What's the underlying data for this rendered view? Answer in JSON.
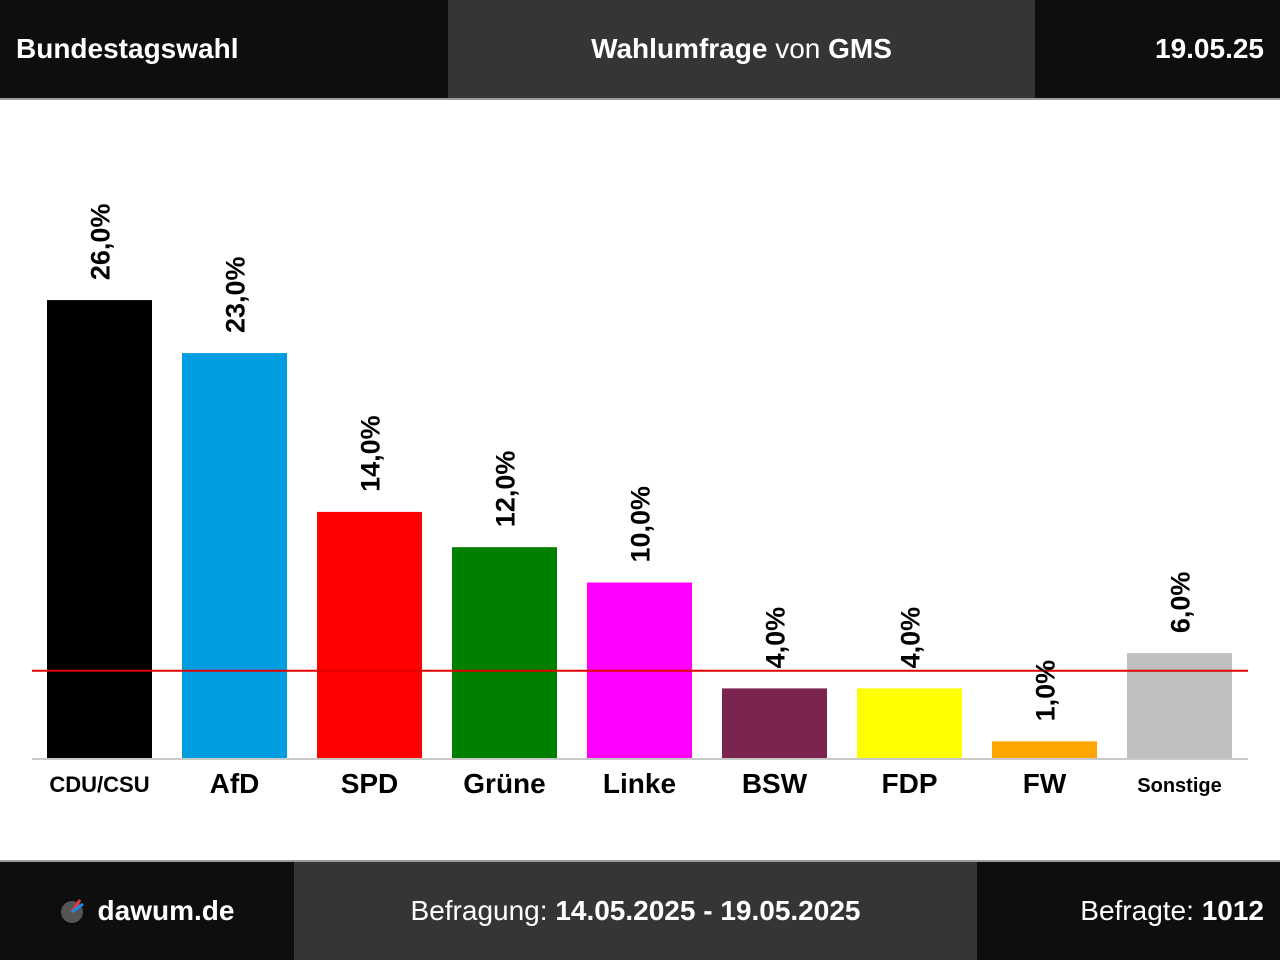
{
  "header": {
    "left": "Bundestagswahl",
    "center_bold_1": "Wahlumfrage",
    "center_normal": "von",
    "center_bold_2": "GMS",
    "right": "19.05.25"
  },
  "footer": {
    "logo_text": "dawum.de",
    "period_label": "Befragung:",
    "period_value": "14.05.2025 - 19.05.2025",
    "respondents_label": "Befragte:",
    "respondents_value": "1012"
  },
  "chart_data": {
    "type": "bar",
    "categories": [
      "CDU/CSU",
      "AfD",
      "SPD",
      "Grüne",
      "Linke",
      "BSW",
      "FDP",
      "FW",
      "Sonstige"
    ],
    "values": [
      26.0,
      23.0,
      14.0,
      12.0,
      10.0,
      4.0,
      4.0,
      1.0,
      6.0
    ],
    "value_labels": [
      "26,0%",
      "23,0%",
      "14,0%",
      "12,0%",
      "10,0%",
      "4,0%",
      "4,0%",
      "1,0%",
      "6,0%"
    ],
    "colors": [
      "#000000",
      "#009ee0",
      "#ff0000",
      "#008000",
      "#ff00ff",
      "#7b2450",
      "#ffff00",
      "#ffa500",
      "#c0c0c0"
    ],
    "threshold": 5,
    "threshold_color": "#e00000",
    "ylim": [
      0,
      30
    ]
  }
}
